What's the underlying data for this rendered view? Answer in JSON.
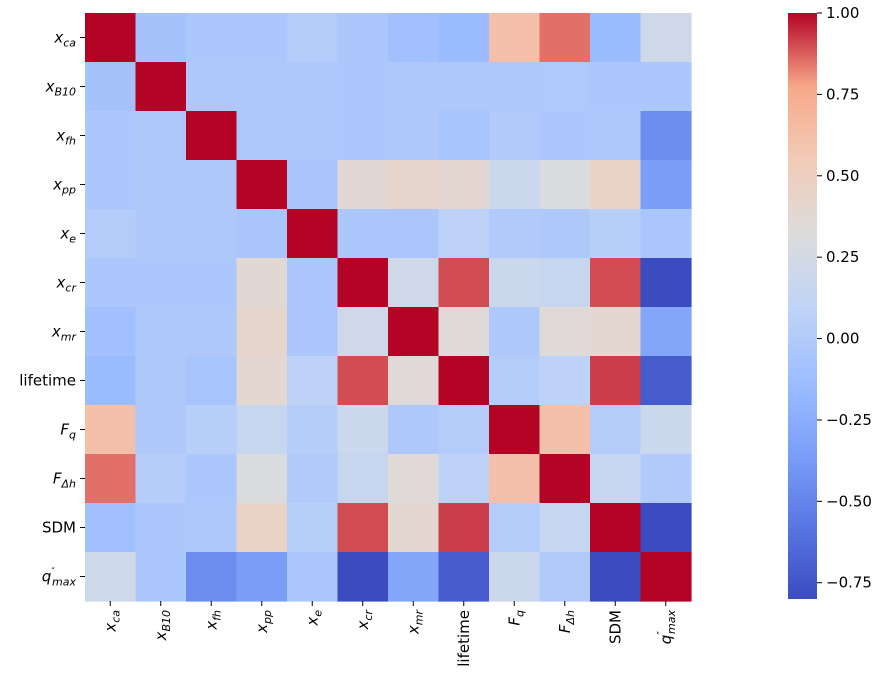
{
  "chart_data": {
    "type": "heatmap",
    "title": "",
    "xlabel": "",
    "ylabel": "",
    "labels": [
      {
        "base": "x",
        "sub": "ca",
        "sup": "",
        "text": "x_ca"
      },
      {
        "base": "x",
        "sub": "B10",
        "sup": "",
        "text": "x_B10"
      },
      {
        "base": "x",
        "sub": "fh",
        "sup": "",
        "text": "x_fh"
      },
      {
        "base": "x",
        "sub": "pp",
        "sup": "",
        "text": "x_pp"
      },
      {
        "base": "x",
        "sub": "e",
        "sup": "",
        "text": "x_e"
      },
      {
        "base": "x",
        "sub": "cr",
        "sup": "",
        "text": "x_cr"
      },
      {
        "base": "x",
        "sub": "mr",
        "sup": "",
        "text": "x_mr"
      },
      {
        "base": "lifetime",
        "sub": "",
        "sup": "",
        "text": "lifetime"
      },
      {
        "base": "F",
        "sub": "q",
        "sup": "",
        "text": "F_q"
      },
      {
        "base": "F",
        "sub": "Δh",
        "sup": "",
        "text": "F_Δh"
      },
      {
        "base": "SDM",
        "sub": "",
        "sup": "",
        "text": "SDM"
      },
      {
        "base": "q",
        "sub": "max",
        "sup": "″",
        "text": "q''_max"
      }
    ],
    "matrix": [
      [
        1.0,
        -0.08,
        -0.03,
        -0.03,
        0.02,
        -0.03,
        -0.1,
        -0.15,
        0.62,
        0.85,
        -0.15,
        0.22
      ],
      [
        -0.08,
        1.0,
        -0.02,
        -0.02,
        -0.02,
        -0.03,
        -0.02,
        -0.02,
        -0.02,
        -0.01,
        -0.03,
        -0.03
      ],
      [
        -0.03,
        -0.02,
        1.0,
        -0.02,
        -0.02,
        -0.03,
        -0.02,
        -0.06,
        0.0,
        -0.03,
        -0.02,
        -0.45
      ],
      [
        -0.03,
        -0.02,
        -0.02,
        1.0,
        -0.05,
        0.38,
        0.42,
        0.4,
        0.18,
        0.3,
        0.45,
        -0.35
      ],
      [
        0.02,
        -0.02,
        -0.02,
        -0.05,
        1.0,
        -0.03,
        -0.04,
        0.08,
        0.0,
        -0.02,
        0.05,
        -0.04
      ],
      [
        -0.03,
        -0.03,
        -0.03,
        0.38,
        -0.03,
        1.0,
        0.22,
        0.9,
        0.18,
        0.15,
        0.9,
        -0.8
      ],
      [
        -0.1,
        -0.02,
        -0.02,
        0.42,
        -0.04,
        0.22,
        1.0,
        0.35,
        -0.02,
        0.35,
        0.4,
        -0.3
      ],
      [
        -0.15,
        -0.02,
        -0.06,
        0.4,
        0.08,
        0.9,
        0.35,
        1.0,
        0.02,
        0.08,
        0.92,
        -0.72
      ],
      [
        0.62,
        -0.02,
        0.05,
        0.15,
        0.03,
        0.18,
        -0.02,
        0.02,
        1.0,
        0.62,
        0.02,
        0.18
      ],
      [
        0.85,
        0.03,
        -0.03,
        0.3,
        0.0,
        0.15,
        0.35,
        0.08,
        0.62,
        1.0,
        0.15,
        0.0
      ],
      [
        -0.1,
        -0.03,
        -0.02,
        0.45,
        0.05,
        0.9,
        0.4,
        0.92,
        0.02,
        0.15,
        1.0,
        -0.8
      ],
      [
        0.2,
        -0.03,
        -0.45,
        -0.35,
        -0.04,
        -0.8,
        -0.3,
        -0.72,
        0.18,
        0.0,
        -0.8,
        1.0
      ]
    ],
    "colorbar": {
      "ticks": [
        1.0,
        0.75,
        0.5,
        0.25,
        0.0,
        -0.25,
        -0.5,
        -0.75
      ],
      "tick_labels": [
        "1.00",
        "0.75",
        "0.50",
        "0.25",
        "0.00",
        "−0.25",
        "−0.50",
        "−0.75"
      ],
      "vmin": -0.8,
      "vmax": 1.0,
      "colormap": "coolwarm",
      "low_color": "#3b4cc0",
      "mid_color": "#dddddd",
      "high_color": "#b40426"
    }
  }
}
